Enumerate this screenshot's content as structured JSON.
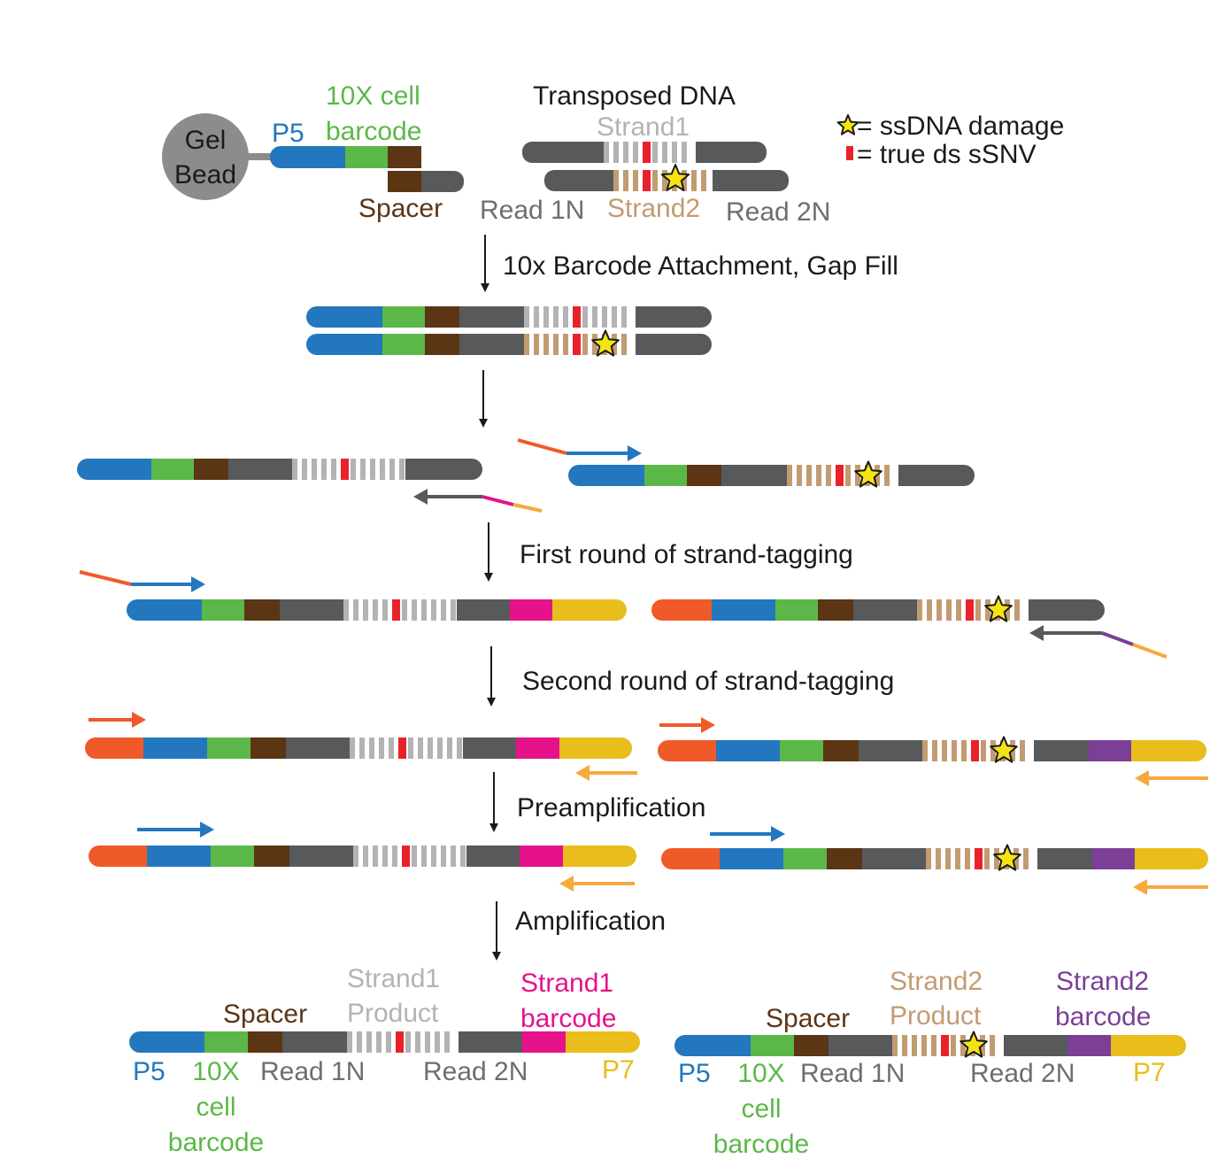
{
  "colors": {
    "p5": "#2377be",
    "cell_barcode": "#5bb848",
    "spacer": "#5c3514",
    "read": "#58595b",
    "strand1_text": "#b3b3b3",
    "strand2": "#c29b72",
    "red_snv": "#e8212b",
    "star": "#f5e312",
    "orange": "#f05a28",
    "magenta": "#e5128a",
    "purple": "#7c3f97",
    "p7": "#e8bd1c",
    "light_orange": "#f7a93c",
    "gel_bead": "#8c8c8c",
    "black": "#1a1a1a"
  },
  "top": {
    "gel_bead_label_line1": "Gel",
    "gel_bead_label_line2": "Bead",
    "p5_label": "P5",
    "cell_barcode_line1": "10X cell",
    "cell_barcode_line2": "barcode",
    "spacer_label": "Spacer",
    "transposed_dna_title": "Transposed DNA",
    "strand1_label": "Strand1",
    "strand2_label": "Strand2",
    "read1n_label": "Read 1N",
    "read2n_label": "Read 2N"
  },
  "legend": {
    "star_text": "= ssDNA damage",
    "snv_text": "= true ds sSNV",
    "star_icon": "star-icon",
    "snv_icon": "red-mark-icon"
  },
  "steps": {
    "step1": "10x Barcode Attachment, Gap Fill",
    "step3": "First round of strand-tagging",
    "step4": "Second round of strand-tagging",
    "step5": "Preamplification",
    "step6": "Amplification"
  },
  "bottom_left": {
    "spacer": "Spacer",
    "strand1_line1": "Strand1",
    "strand1_line2": "Product",
    "strand1_barcode_line1": "Strand1",
    "strand1_barcode_line2": "barcode",
    "p5": "P5",
    "cell_line1": "10X",
    "cell_line2": "cell",
    "cell_line3": "barcode",
    "read1n": "Read 1N",
    "read2n": "Read 2N",
    "p7": "P7"
  },
  "bottom_right": {
    "spacer": "Spacer",
    "strand2_line1": "Strand2",
    "strand2_line2": "Product",
    "strand2_barcode_line1": "Strand2",
    "strand2_barcode_line2": "barcode",
    "p5": "P5",
    "cell_line1": "10X",
    "cell_line2": "cell",
    "cell_line3": "barcode",
    "read1n": "Read 1N",
    "read2n": "Read 2N",
    "p7": "P7"
  }
}
